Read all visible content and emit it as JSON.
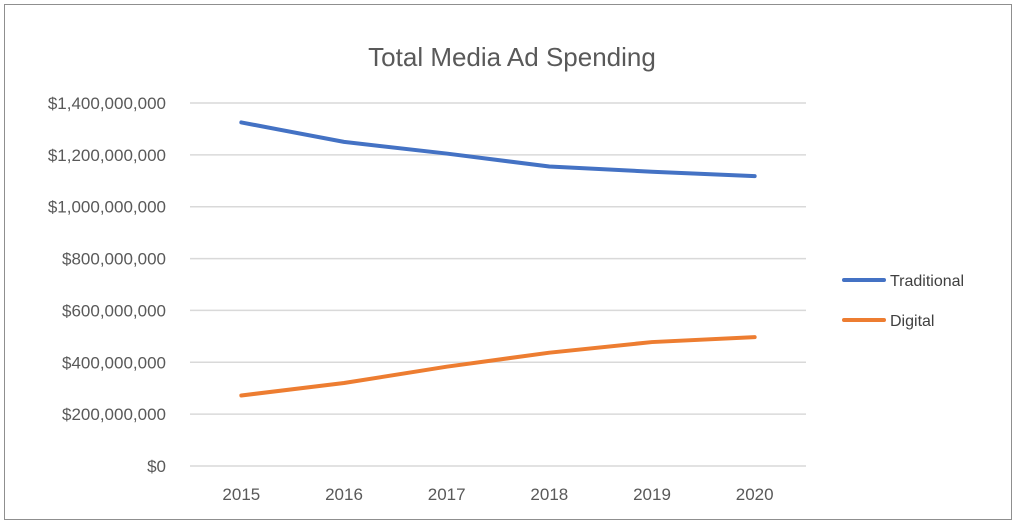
{
  "chart_data": {
    "type": "line",
    "title": "Total Media Ad Spending",
    "xlabel": "",
    "ylabel": "",
    "categories": [
      "2015",
      "2016",
      "2017",
      "2018",
      "2019",
      "2020"
    ],
    "ylim": [
      0,
      1400000000
    ],
    "y_ticks": [
      0,
      200000000,
      400000000,
      600000000,
      800000000,
      1000000000,
      1200000000,
      1400000000
    ],
    "y_tick_labels": [
      "$0",
      "$200,000,000",
      "$400,000,000",
      "$600,000,000",
      "$800,000,000",
      "$1,000,000,000",
      "$1,200,000,000",
      "$1,400,000,000"
    ],
    "grid": true,
    "legend_position": "right",
    "series": [
      {
        "name": "Traditional",
        "color": "#4472C4",
        "values": [
          1325000000,
          1250000000,
          1205000000,
          1155000000,
          1135000000,
          1118000000
        ]
      },
      {
        "name": "Digital",
        "color": "#ED7D31",
        "values": [
          272000000,
          320000000,
          383000000,
          437000000,
          478000000,
          497000000
        ]
      }
    ]
  }
}
